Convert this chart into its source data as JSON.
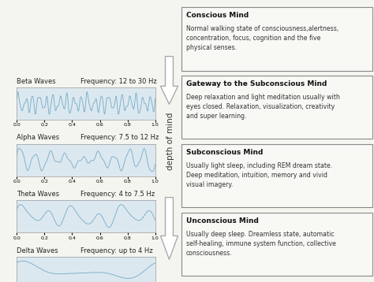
{
  "wave_color": "#7bafc8",
  "bg_color": "#f5f5f0",
  "wave_box_color": "#dce8f0",
  "wave_labels": [
    "Beta Waves",
    "Alpha Waves",
    "Theta Waves",
    "Delta Waves"
  ],
  "freq_labels": [
    "Frequency: 12 to 30 Hz",
    "Frequency: 7.5 to 12 Hz",
    "Frequency: 4 to 7.5 Hz",
    "Frequency: up to 4 Hz"
  ],
  "mind_labels": [
    "Conscious Mind",
    "Gateway to the Subconscious Mind",
    "Subconscious Mind",
    "Unconscious Mind"
  ],
  "mind_texts": [
    "Normal walking state of consciousness,alertness,\nconcentration, focus, cognition and the five\nphysical senses.",
    "Deep relaxation and light meditation usually with\neyes closed. Relaxation, visualization, creativity\nand super learning.",
    "Usually light sleep, including REM dream state.\nDeep meditation, intuition, memory and vivid\nvisual imagery.",
    "Usually deep sleep. Dreamless state, automatic\nself-healing, immune system function, collective\nconsciousness."
  ],
  "depth_label": "depth of mind",
  "beta_freq": 20,
  "alpha_freq": 9,
  "theta_freq": 5.5,
  "delta_freq": 2.0
}
